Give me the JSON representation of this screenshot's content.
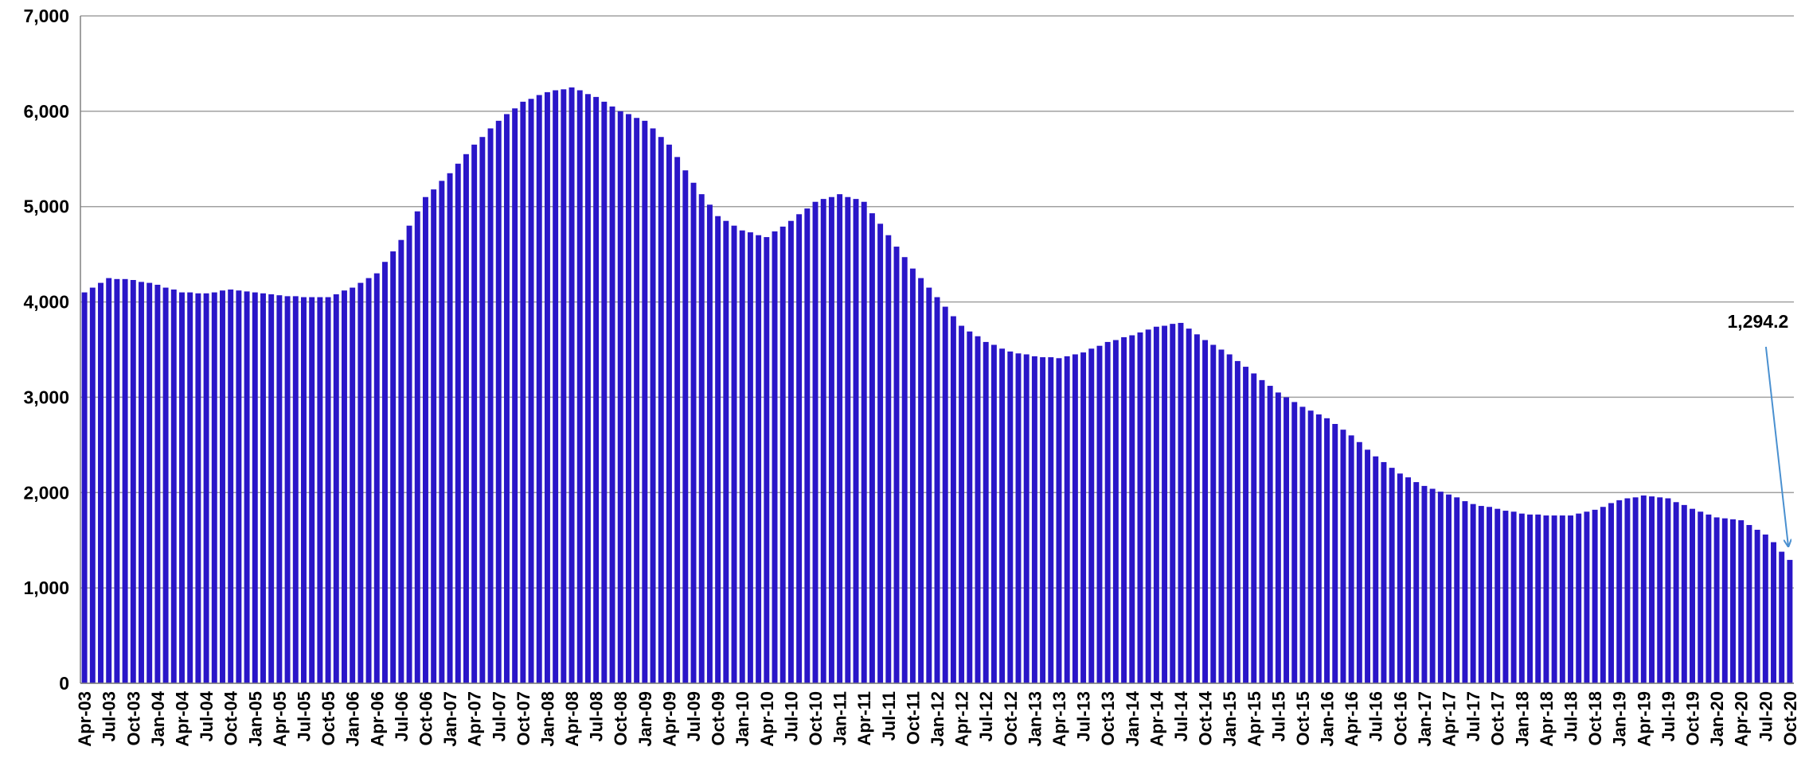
{
  "chart_data": {
    "type": "bar",
    "categories": [
      "Apr-03",
      null,
      null,
      "Jul-03",
      null,
      null,
      "Oct-03",
      null,
      null,
      "Jan-04",
      null,
      null,
      "Apr-04",
      null,
      null,
      "Jul-04",
      null,
      null,
      "Oct-04",
      null,
      null,
      "Jan-05",
      null,
      null,
      "Apr-05",
      null,
      null,
      "Jul-05",
      null,
      null,
      "Oct-05",
      null,
      null,
      "Jan-06",
      null,
      null,
      "Apr-06",
      null,
      null,
      "Jul-06",
      null,
      null,
      "Oct-06",
      null,
      null,
      "Jan-07",
      null,
      null,
      "Apr-07",
      null,
      null,
      "Jul-07",
      null,
      null,
      "Oct-07",
      null,
      null,
      "Jan-08",
      null,
      null,
      "Apr-08",
      null,
      null,
      "Jul-08",
      null,
      null,
      "Oct-08",
      null,
      null,
      "Jan-09",
      null,
      null,
      "Apr-09",
      null,
      null,
      "Jul-09",
      null,
      null,
      "Oct-09",
      null,
      null,
      "Jan-10",
      null,
      null,
      "Apr-10",
      null,
      null,
      "Jul-10",
      null,
      null,
      "Oct-10",
      null,
      null,
      "Jan-11",
      null,
      null,
      "Apr-11",
      null,
      null,
      "Jul-11",
      null,
      null,
      "Oct-11",
      null,
      null,
      "Jan-12",
      null,
      null,
      "Apr-12",
      null,
      null,
      "Jul-12",
      null,
      null,
      "Oct-12",
      null,
      null,
      "Jan-13",
      null,
      null,
      "Apr-13",
      null,
      null,
      "Jul-13",
      null,
      null,
      "Oct-13",
      null,
      null,
      "Jan-14",
      null,
      null,
      "Apr-14",
      null,
      null,
      "Jul-14",
      null,
      null,
      "Oct-14",
      null,
      null,
      "Jan-15",
      null,
      null,
      "Apr-15",
      null,
      null,
      "Jul-15",
      null,
      null,
      "Oct-15",
      null,
      null,
      "Jan-16",
      null,
      null,
      "Apr-16",
      null,
      null,
      "Jul-16",
      null,
      null,
      "Oct-16",
      null,
      null,
      "Jan-17",
      null,
      null,
      "Apr-17",
      null,
      null,
      "Jul-17",
      null,
      null,
      "Oct-17",
      null,
      null,
      "Jan-18",
      null,
      null,
      "Apr-18",
      null,
      null,
      "Jul-18",
      null,
      null,
      "Oct-18",
      null,
      null,
      "Jan-19",
      null,
      null,
      "Apr-19",
      null,
      null,
      "Jul-19",
      null,
      null,
      "Oct-19",
      null,
      null,
      "Jan-20",
      null,
      null,
      "Apr-20",
      null,
      null,
      "Jul-20",
      null,
      null,
      "Oct-20"
    ],
    "values": [
      4100,
      4150,
      4200,
      4250,
      4240,
      4240,
      4230,
      4210,
      4200,
      4180,
      4150,
      4130,
      4100,
      4100,
      4090,
      4090,
      4100,
      4120,
      4130,
      4120,
      4110,
      4100,
      4090,
      4080,
      4070,
      4060,
      4060,
      4050,
      4050,
      4050,
      4050,
      4080,
      4120,
      4150,
      4200,
      4250,
      4300,
      4420,
      4530,
      4650,
      4800,
      4950,
      5100,
      5180,
      5270,
      5350,
      5450,
      5550,
      5650,
      5730,
      5820,
      5900,
      5970,
      6030,
      6100,
      6130,
      6170,
      6200,
      6220,
      6230,
      6250,
      6220,
      6180,
      6150,
      6100,
      6050,
      6000,
      5970,
      5930,
      5900,
      5820,
      5730,
      5650,
      5520,
      5380,
      5250,
      5130,
      5020,
      4900,
      4850,
      4800,
      4750,
      4730,
      4700,
      4680,
      4740,
      4790,
      4850,
      4920,
      4980,
      5050,
      5080,
      5100,
      5130,
      5100,
      5080,
      5050,
      4930,
      4820,
      4700,
      4580,
      4470,
      4350,
      4250,
      4150,
      4050,
      3950,
      3850,
      3750,
      3690,
      3640,
      3580,
      3550,
      3510,
      3480,
      3460,
      3450,
      3430,
      3420,
      3420,
      3410,
      3430,
      3450,
      3470,
      3510,
      3540,
      3580,
      3600,
      3630,
      3650,
      3680,
      3710,
      3740,
      3750,
      3770,
      3780,
      3720,
      3660,
      3600,
      3550,
      3500,
      3450,
      3380,
      3320,
      3250,
      3180,
      3120,
      3050,
      3000,
      2950,
      2900,
      2860,
      2820,
      2780,
      2720,
      2660,
      2600,
      2530,
      2450,
      2380,
      2320,
      2260,
      2200,
      2160,
      2110,
      2070,
      2040,
      2010,
      1980,
      1950,
      1910,
      1880,
      1860,
      1850,
      1830,
      1810,
      1800,
      1780,
      1770,
      1770,
      1760,
      1760,
      1760,
      1760,
      1780,
      1800,
      1820,
      1850,
      1890,
      1920,
      1940,
      1950,
      1970,
      1960,
      1950,
      1940,
      1900,
      1870,
      1830,
      1800,
      1770,
      1740,
      1730,
      1720,
      1710,
      1660,
      1610,
      1560,
      1480,
      1380,
      1294.2
    ],
    "value_labels": [
      null,
      null,
      null,
      null,
      null,
      null,
      null,
      null,
      null,
      null,
      null,
      null,
      null,
      null,
      null,
      null,
      null,
      null,
      null,
      null,
      null,
      null,
      null,
      null,
      null,
      null,
      null,
      null,
      null,
      null,
      null,
      null,
      null,
      null,
      null,
      null,
      null,
      null,
      null,
      null,
      null,
      null,
      null,
      null,
      null,
      null,
      null,
      null,
      null,
      null,
      null,
      null,
      null,
      null,
      null,
      null,
      null,
      null,
      null,
      null,
      null,
      null,
      null,
      null,
      null,
      null,
      null,
      null,
      null,
      null,
      null,
      null,
      null,
      null,
      null,
      null,
      null,
      null,
      null,
      null,
      null,
      null,
      null,
      null,
      null,
      null,
      null,
      null,
      null,
      null,
      null,
      null,
      null,
      null,
      null,
      null,
      null,
      null,
      null,
      null,
      null,
      null,
      null,
      null,
      null,
      null,
      null,
      null,
      null,
      null,
      null,
      null,
      null,
      null,
      null,
      null,
      null,
      null,
      null,
      null,
      null,
      null,
      null,
      null,
      null,
      null,
      null,
      null,
      null,
      null,
      null,
      null,
      null,
      null,
      null,
      null,
      null,
      null,
      null,
      null,
      null,
      null,
      null,
      null,
      null,
      null,
      null,
      null,
      null,
      null,
      null,
      null,
      null,
      null,
      null,
      null,
      null,
      null,
      null,
      null,
      null,
      null,
      null,
      null,
      null,
      null,
      null,
      null,
      null,
      null,
      null,
      null,
      null,
      null,
      null,
      null,
      null,
      null,
      null,
      null,
      null,
      null,
      null,
      null,
      null,
      null,
      null,
      null,
      null,
      null,
      null,
      null,
      null,
      null,
      null,
      null,
      null,
      null,
      null,
      null,
      null,
      null,
      null,
      null,
      null,
      null,
      null,
      null,
      null,
      null,
      "1,294.2"
    ],
    "color": "#2a16c8",
    "ylim": [
      0,
      7000
    ],
    "yticks": [
      0,
      {
        "value": 1000,
        "label": "1,000"
      },
      {
        "value": 2000,
        "label": "2,000"
      },
      {
        "value": 3000,
        "label": "3,000"
      },
      {
        "value": 4000,
        "label": "4,000"
      },
      {
        "value": 5000,
        "label": "5,000"
      },
      {
        "value": 6000,
        "label": "6,000"
      },
      {
        "value": 7000,
        "label": "7,000"
      }
    ],
    "grid": true
  }
}
